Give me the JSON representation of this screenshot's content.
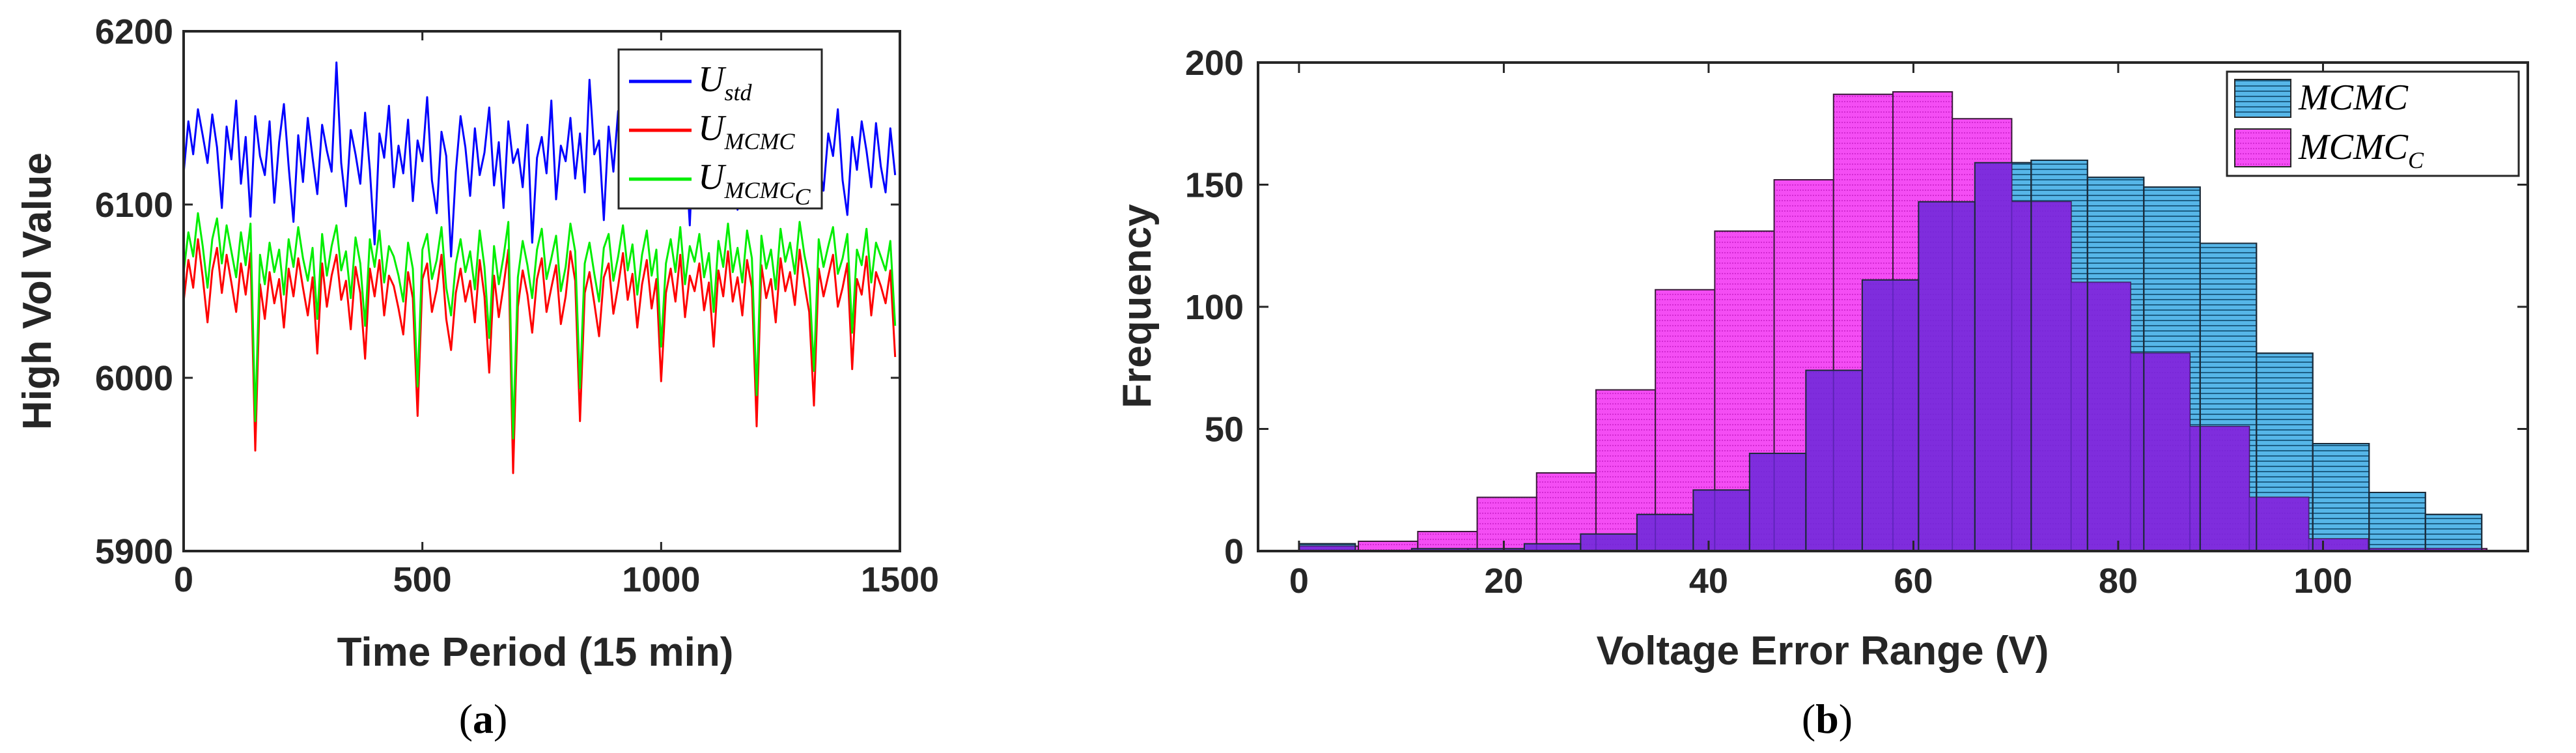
{
  "panels": [
    {
      "caption_open": "(",
      "caption_letter": "a",
      "caption_close": ")"
    },
    {
      "caption_open": "(",
      "caption_letter": "b",
      "caption_close": ")"
    }
  ],
  "chart_data": [
    {
      "type": "line",
      "xlabel": "Time Period (15 min)",
      "ylabel": "High Vol Value",
      "xlim": [
        0,
        1500
      ],
      "ylim": [
        5900,
        6200
      ],
      "xticks": [
        0,
        500,
        1000,
        1500
      ],
      "yticks": [
        5900,
        6000,
        6100,
        6200
      ],
      "legend_position": "top-right",
      "x_step": 10,
      "series": [
        {
          "name": "U_std",
          "legend_base": "U",
          "legend_sub": "std",
          "color": "#0000ff",
          "values": [
            6118,
            6148,
            6129,
            6155,
            6140,
            6124,
            6152,
            6133,
            6098,
            6145,
            6126,
            6160,
            6112,
            6139,
            6093,
            6151,
            6128,
            6117,
            6148,
            6101,
            6136,
            6158,
            6122,
            6090,
            6140,
            6113,
            6150,
            6127,
            6106,
            6146,
            6131,
            6119,
            6182,
            6124,
            6099,
            6143,
            6129,
            6112,
            6153,
            6120,
            6077,
            6141,
            6127,
            6157,
            6110,
            6134,
            6118,
            6149,
            6102,
            6137,
            6125,
            6162,
            6114,
            6095,
            6142,
            6128,
            6070,
            6119,
            6151,
            6133,
            6105,
            6144,
            6117,
            6130,
            6156,
            6111,
            6136,
            6098,
            6148,
            6124,
            6132,
            6110,
            6146,
            6078,
            6127,
            6139,
            6118,
            6160,
            6103,
            6134,
            6125,
            6150,
            6115,
            6141,
            6107,
            6172,
            6129,
            6137,
            6091,
            6145,
            6119,
            6154,
            6126,
            6108,
            6140,
            6115,
            6133,
            6147,
            6122,
            6101,
            6163,
            6128,
            6111,
            6144,
            6120,
            6136,
            6088,
            6152,
            6117,
            6131,
            6109,
            6149,
            6124,
            6158,
            6113,
            6139,
            6097,
            6145,
            6126,
            6118,
            6152,
            6104,
            6137,
            6129,
            6143,
            6116,
            6160,
            6121,
            6098,
            6146,
            6133,
            6112,
            6150,
            6125,
            6108,
            6141,
            6128,
            6155,
            6114,
            6094,
            6139,
            6120,
            6148,
            6131,
            6110,
            6147,
            6122,
            6107,
            6144,
            6117
          ]
        },
        {
          "name": "U_MCMC",
          "legend_base": "U",
          "legend_sub": "MCMC",
          "color": "#ff0000",
          "values": [
            6044,
            6068,
            6052,
            6080,
            6058,
            6032,
            6062,
            6075,
            6049,
            6071,
            6055,
            6038,
            6066,
            6048,
            6072,
            5958,
            6054,
            6034,
            6061,
            6043,
            6057,
            6029,
            6063,
            6047,
            6069,
            6052,
            6036,
            6058,
            6014,
            6066,
            6041,
            6059,
            6071,
            6045,
            6056,
            6028,
            6064,
            6049,
            6011,
            6063,
            6047,
            6068,
            6036,
            6059,
            6053,
            6040,
            6025,
            6061,
            6046,
            5978,
            6057,
            6066,
            6038,
            6051,
            6071,
            6034,
            6016,
            6049,
            6063,
            6044,
            6056,
            6032,
            6068,
            6047,
            6003,
            6059,
            6035,
            6053,
            6074,
            5945,
            6041,
            6062,
            6048,
            6026,
            6057,
            6069,
            6038,
            6052,
            6065,
            6031,
            6047,
            6073,
            6056,
            5975,
            6049,
            6061,
            6043,
            6024,
            6058,
            6066,
            6037,
            6053,
            6072,
            6045,
            6060,
            6029,
            6054,
            6068,
            6040,
            6057,
            5998,
            6049,
            6063,
            6044,
            6071,
            6035,
            6059,
            6050,
            6066,
            6039,
            6055,
            6018,
            6062,
            6047,
            6073,
            6044,
            6058,
            6036,
            6068,
            6052,
            5972,
            6065,
            6046,
            6057,
            6032,
            6069,
            6050,
            6061,
            6042,
            6074,
            6054,
            6038,
            5984,
            6063,
            6047,
            6059,
            6071,
            6041,
            6052,
            6066,
            6005,
            6057,
            6048,
            6070,
            6036,
            6061,
            6053,
            6043,
            6062,
            6012
          ]
        },
        {
          "name": "U_MCMC_C",
          "legend_base": "U",
          "legend_sub": "MCMC",
          "legend_subsub": "C",
          "color": "#00ee00",
          "values": [
            6061,
            6084,
            6070,
            6095,
            6076,
            6052,
            6080,
            6092,
            6066,
            6088,
            6073,
            6058,
            6084,
            6065,
            6089,
            5975,
            6071,
            6054,
            6078,
            6061,
            6074,
            6048,
            6080,
            6064,
            6087,
            6069,
            6056,
            6075,
            6034,
            6083,
            6059,
            6076,
            6088,
            6062,
            6073,
            6046,
            6081,
            6066,
            6030,
            6080,
            6064,
            6085,
            6055,
            6076,
            6070,
            6059,
            6044,
            6078,
            6063,
            5995,
            6074,
            6083,
            6057,
            6068,
            6087,
            6052,
            6036,
            6066,
            6080,
            6061,
            6073,
            6051,
            6085,
            6064,
            6023,
            6076,
            6054,
            6070,
            6090,
            5965,
            6058,
            6079,
            6065,
            6046,
            6074,
            6086,
            6057,
            6069,
            6082,
            6050,
            6064,
            6089,
            6073,
            5994,
            6066,
            6078,
            6060,
            6044,
            6075,
            6083,
            6056,
            6070,
            6088,
            6062,
            6077,
            6048,
            6071,
            6085,
            6059,
            6074,
            6018,
            6066,
            6080,
            6061,
            6087,
            6054,
            6076,
            6067,
            6083,
            6058,
            6072,
            6038,
            6079,
            6064,
            6089,
            6061,
            6075,
            6055,
            6085,
            6069,
            5990,
            6082,
            6063,
            6074,
            6051,
            6086,
            6067,
            6078,
            6060,
            6090,
            6071,
            6057,
            6004,
            6080,
            6064,
            6076,
            6087,
            6060,
            6069,
            6083,
            6026,
            6074,
            6065,
            6086,
            6055,
            6078,
            6070,
            6062,
            6079,
            6030
          ]
        }
      ]
    },
    {
      "type": "histogram",
      "xlabel": "Voltage Error Range (V)",
      "ylabel": "Frequency",
      "xlim": [
        -4,
        120
      ],
      "ylim": [
        0,
        200
      ],
      "xticks": [
        0,
        20,
        40,
        60,
        80,
        100
      ],
      "yticks": [
        0,
        50,
        100,
        150,
        200
      ],
      "legend_position": "top-right",
      "series": [
        {
          "name": "MCMC",
          "legend_base": "MCMC",
          "color": "#4aaee0",
          "bin_width": 5.5,
          "bin_starts": [
            0,
            5.5,
            11,
            16.5,
            22,
            27.5,
            33,
            38.5,
            44,
            49.5,
            55,
            60.5,
            66,
            71.5,
            77,
            82.5,
            88,
            93.5,
            99,
            104.5,
            110
          ],
          "counts": [
            3,
            0,
            1,
            1,
            3,
            7,
            15,
            25,
            40,
            74,
            111,
            143,
            159,
            160,
            153,
            149,
            126,
            81,
            44,
            24,
            15
          ]
        },
        {
          "name": "MCMC_C",
          "legend_base": "MCMC",
          "legend_sub": "C",
          "color": "#f23cf2",
          "bin_width": 5.8,
          "bin_starts": [
            0,
            5.8,
            11.6,
            17.4,
            23.2,
            29,
            34.8,
            40.6,
            46.4,
            52.2,
            58,
            63.8,
            69.6,
            75.4,
            81.2,
            87,
            92.8,
            98.6,
            104.4,
            110.2
          ],
          "counts": [
            2,
            4,
            8,
            22,
            32,
            66,
            107,
            131,
            152,
            187,
            188,
            177,
            143,
            110,
            81,
            51,
            22,
            5,
            1,
            1
          ]
        }
      ],
      "overlap_color": "#6a28d8"
    }
  ]
}
